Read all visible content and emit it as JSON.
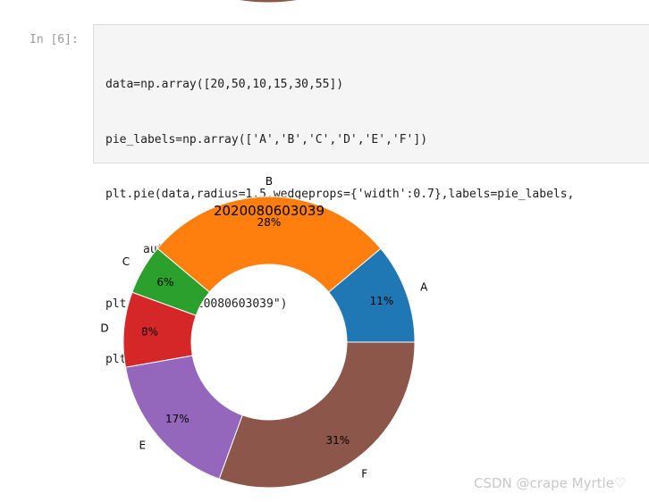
{
  "cell": {
    "prompt": "In [6]:",
    "code_lines": [
      "data=np.array([20,50,10,15,30,55])",
      "pie_labels=np.array(['A','B','C','D','E','F'])",
      "plt.pie(data,radius=1.5,wedgeprops={'width':0.7},labels=pie_labels,",
      "autopct='%3.1f%%',pctdistance=0.8)",
      "plt.title(\"2020080603039\")",
      "plt.show()"
    ]
  },
  "chart_data": {
    "type": "pie",
    "title": "2020080603039",
    "categories": [
      "A",
      "B",
      "C",
      "D",
      "E",
      "F"
    ],
    "values": [
      20,
      50,
      10,
      15,
      30,
      55
    ],
    "percent_labels": [
      "11%",
      "28%",
      "6%",
      "8%",
      "17%",
      "31%"
    ],
    "colors": [
      "#1f77b4",
      "#ff7f0e",
      "#2ca02c",
      "#d62728",
      "#9467bd",
      "#8c564b"
    ],
    "start_angle_deg": 0,
    "direction": "counterclockwise",
    "ring": true
  },
  "watermark": "CSDN @crape Myrtle♡"
}
